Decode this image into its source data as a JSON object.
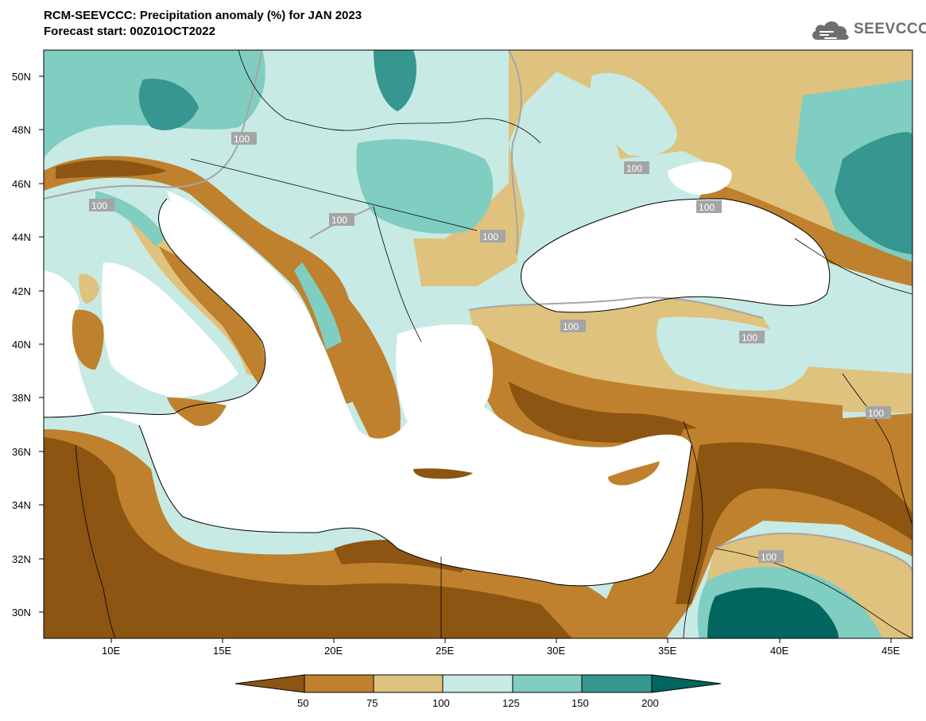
{
  "header": {
    "title": "RCM-SEEVCCC: Precipitation anomaly (%) for JAN 2023",
    "subtitle": "Forecast start: 00Z01OCT2022"
  },
  "logo": {
    "text": "SEEVCCC",
    "icon": "cloud-icon"
  },
  "colors": {
    "very_dry": "#8c5512",
    "dry": "#bf812d",
    "slightly_dry": "#dfc27d",
    "slightly_wet": "#c7eae5",
    "wet": "#80cdc1",
    "very_wet": "#35978f",
    "extreme_wet": "#01665e",
    "land_sea": "#ffffff",
    "contour_100": "#a5a5a5"
  },
  "map": {
    "lon_ticks": [
      "10E",
      "15E",
      "20E",
      "25E",
      "30E",
      "35E",
      "40E",
      "45E"
    ],
    "lat_ticks": [
      "50N",
      "48N",
      "46N",
      "44N",
      "42N",
      "40N",
      "38N",
      "36N",
      "34N",
      "32N",
      "30N"
    ],
    "lon_range": [
      7,
      46
    ],
    "lat_range": [
      29,
      51
    ],
    "contour_labels": [
      "100",
      "100",
      "100",
      "100",
      "100",
      "100",
      "100",
      "100",
      "100",
      "100"
    ]
  },
  "colorbar": {
    "ticks": [
      "50",
      "75",
      "100",
      "125",
      "150",
      "200"
    ]
  }
}
